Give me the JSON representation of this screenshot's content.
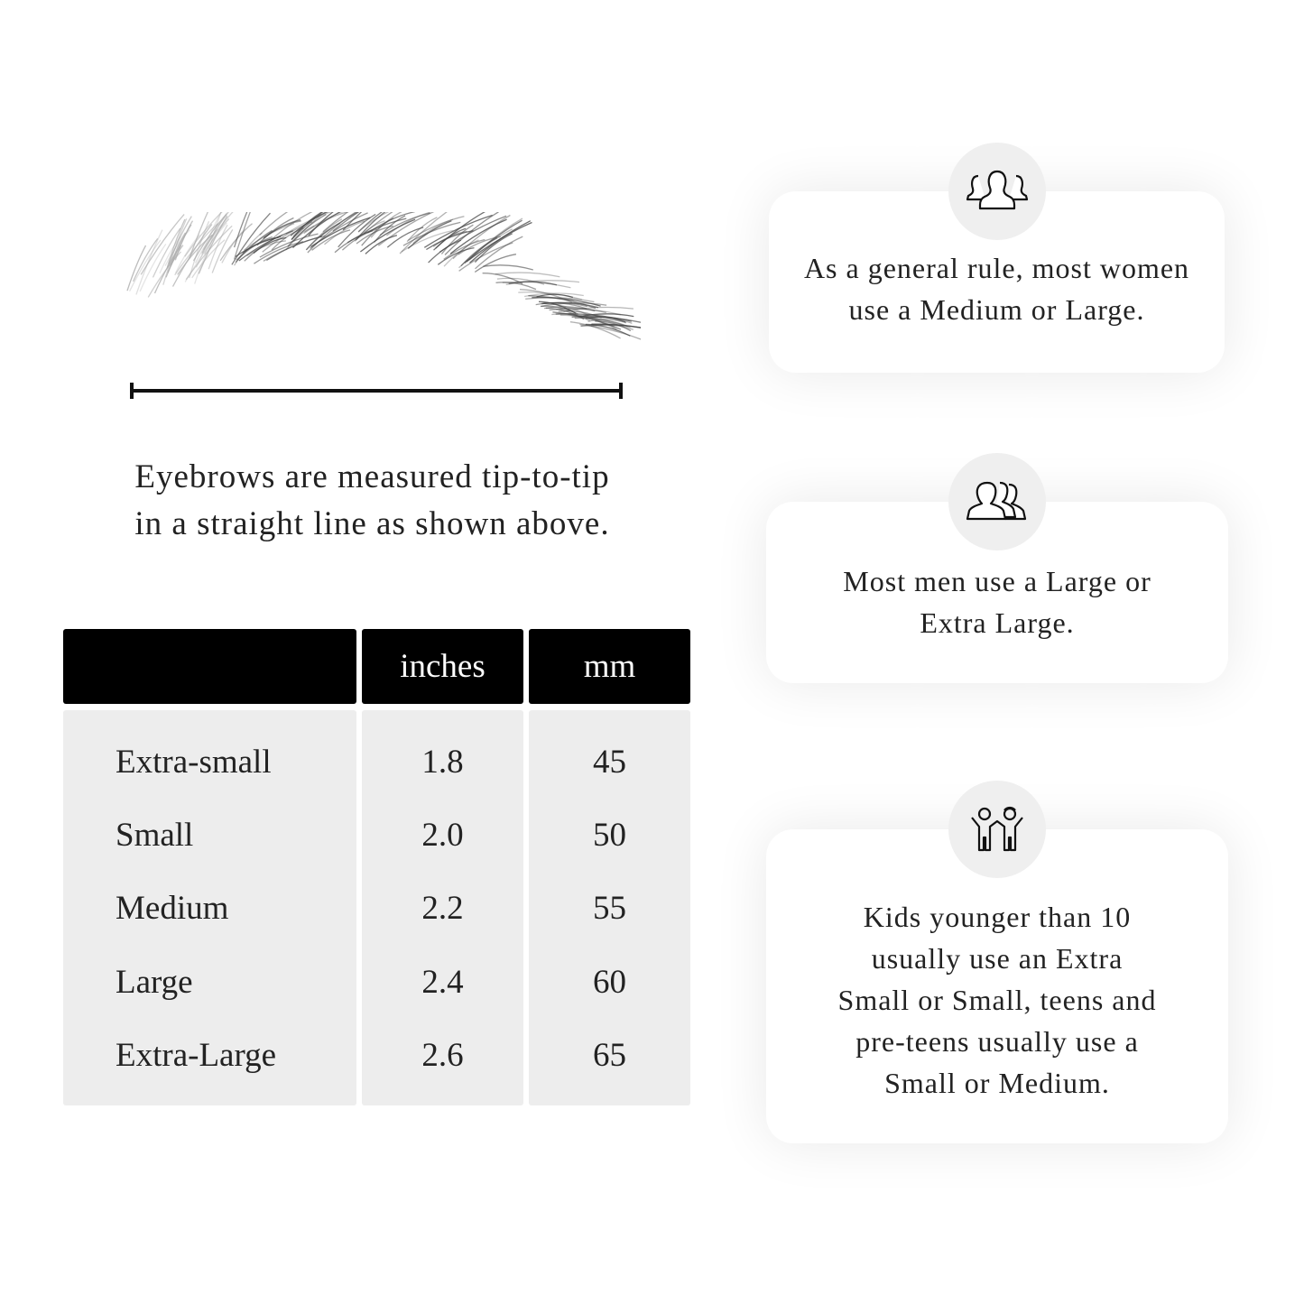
{
  "measure": {
    "caption_lines": [
      "Eyebrows are measured tip-to-tip",
      "in a straight line as shown above."
    ]
  },
  "size_table": {
    "headers": [
      "",
      "inches",
      "mm"
    ],
    "rows": [
      {
        "size": "Extra-small",
        "inches": "1.8",
        "mm": "45"
      },
      {
        "size": "Small",
        "inches": "2.0",
        "mm": "50"
      },
      {
        "size": "Medium",
        "inches": "2.2",
        "mm": "55"
      },
      {
        "size": "Large",
        "inches": "2.4",
        "mm": "60"
      },
      {
        "size": "Extra-Large",
        "inches": "2.6",
        "mm": "65"
      }
    ]
  },
  "cards": [
    {
      "icon": "women-group-icon",
      "lines": [
        "As a general rule, most women",
        "use a Medium or Large."
      ]
    },
    {
      "icon": "men-group-icon",
      "lines": [
        "Most men use a Large or",
        "Extra Large."
      ]
    },
    {
      "icon": "kids-icon",
      "lines": [
        "Kids younger than 10",
        "usually use an Extra",
        "Small or Small, teens and",
        "pre-teens usually use a",
        "Small or Medium."
      ]
    }
  ]
}
